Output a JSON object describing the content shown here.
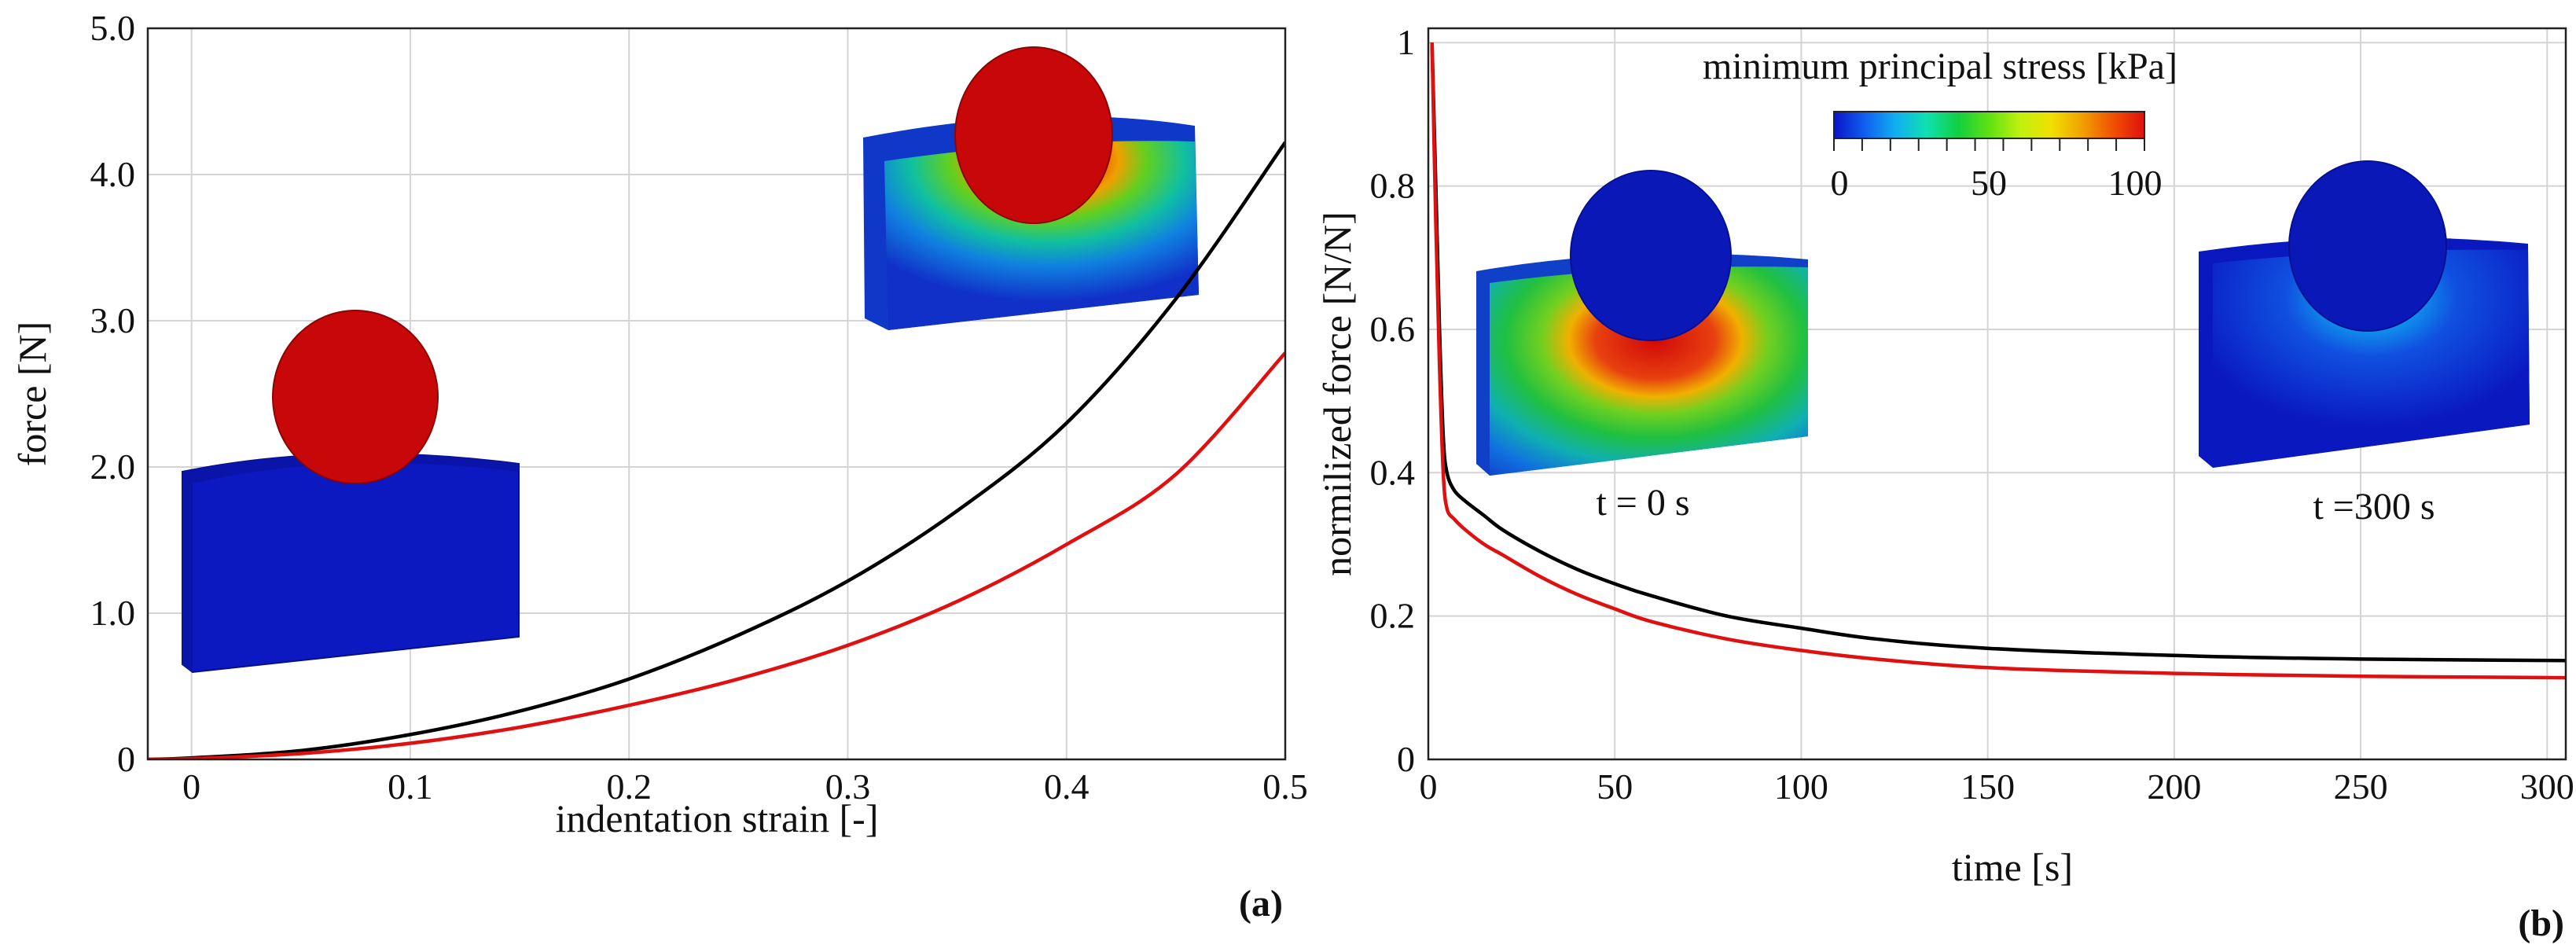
{
  "chart_data": [
    {
      "type": "line",
      "panel_label": "(a)",
      "xlabel": "indentation strain [-]",
      "ylabel": "force [N]",
      "xlim": [
        -0.02,
        0.5
      ],
      "ylim": [
        0,
        5.0
      ],
      "xticks": [
        0,
        0.1,
        0.2,
        0.3,
        0.4,
        0.5
      ],
      "xtick_labels": [
        "0",
        "0.1",
        "0.2",
        "0.3",
        "0.4",
        "0.5"
      ],
      "yticks": [
        0,
        1.0,
        2.0,
        3.0,
        4.0,
        5.0
      ],
      "ytick_labels": [
        "0",
        "1.0",
        "2.0",
        "3.0",
        "4.0",
        "5.0"
      ],
      "grid": true,
      "series": [
        {
          "name": "black",
          "color": "#000000",
          "x": [
            -0.02,
            0.0,
            0.05,
            0.1,
            0.15,
            0.2,
            0.25,
            0.3,
            0.35,
            0.4,
            0.45,
            0.5
          ],
          "y": [
            0,
            0.01,
            0.06,
            0.17,
            0.33,
            0.55,
            0.85,
            1.22,
            1.7,
            2.3,
            3.15,
            4.22
          ]
        },
        {
          "name": "red",
          "color": "#e01010",
          "x": [
            -0.02,
            0.0,
            0.05,
            0.1,
            0.15,
            0.2,
            0.25,
            0.3,
            0.35,
            0.4,
            0.45,
            0.5
          ],
          "y": [
            0,
            0.005,
            0.04,
            0.11,
            0.22,
            0.37,
            0.55,
            0.78,
            1.08,
            1.47,
            1.95,
            2.78
          ]
        }
      ]
    },
    {
      "type": "line",
      "panel_label": "(b)",
      "xlabel": "time [s]",
      "ylabel": "normilized force [N/N]",
      "xlim": [
        0,
        305
      ],
      "ylim": [
        0,
        1.02
      ],
      "xticks": [
        0,
        50,
        100,
        150,
        200,
        250,
        300
      ],
      "xtick_labels": [
        "0",
        "50",
        "100",
        "150",
        "200",
        "250",
        "300"
      ],
      "yticks": [
        0,
        0.2,
        0.4,
        0.6,
        0.8,
        1
      ],
      "ytick_labels": [
        "0",
        "0.2",
        "0.4",
        "0.6",
        "0.8",
        "1"
      ],
      "grid": true,
      "series": [
        {
          "name": "black",
          "color": "#000000",
          "x": [
            1,
            2,
            3,
            4,
            5,
            7,
            10,
            15,
            20,
            30,
            40,
            50,
            60,
            80,
            100,
            120,
            150,
            200,
            250,
            305
          ],
          "y": [
            1.0,
            0.8,
            0.6,
            0.45,
            0.4,
            0.375,
            0.36,
            0.34,
            0.32,
            0.29,
            0.265,
            0.245,
            0.228,
            0.2,
            0.183,
            0.168,
            0.155,
            0.145,
            0.14,
            0.138
          ]
        },
        {
          "name": "red",
          "color": "#e01010",
          "x": [
            1,
            2,
            3,
            4,
            5,
            7,
            10,
            15,
            20,
            30,
            40,
            50,
            60,
            80,
            100,
            120,
            150,
            200,
            250,
            305
          ],
          "y": [
            1.0,
            0.75,
            0.55,
            0.4,
            0.35,
            0.335,
            0.32,
            0.3,
            0.285,
            0.255,
            0.23,
            0.21,
            0.192,
            0.168,
            0.152,
            0.14,
            0.128,
            0.12,
            0.116,
            0.114
          ]
        }
      ]
    }
  ],
  "colorbar": {
    "title": "minimum principal stress [kPa]",
    "tick_labels": [
      "0",
      "50",
      "100"
    ],
    "colors": [
      "#0a14c8",
      "#1060f0",
      "#10b0f0",
      "#10e0b0",
      "#10d040",
      "#60e010",
      "#c0f010",
      "#f0e000",
      "#f0a000",
      "#f05000",
      "#e01010"
    ]
  },
  "annotations": {
    "t0": "t = 0 s",
    "t300": "t =300 s"
  },
  "colors": {
    "blue_gel": "#0c18c0",
    "red_sphere": "#c80808",
    "blue_sphere": "#0a18b8",
    "grid": "#d4d4d4"
  }
}
